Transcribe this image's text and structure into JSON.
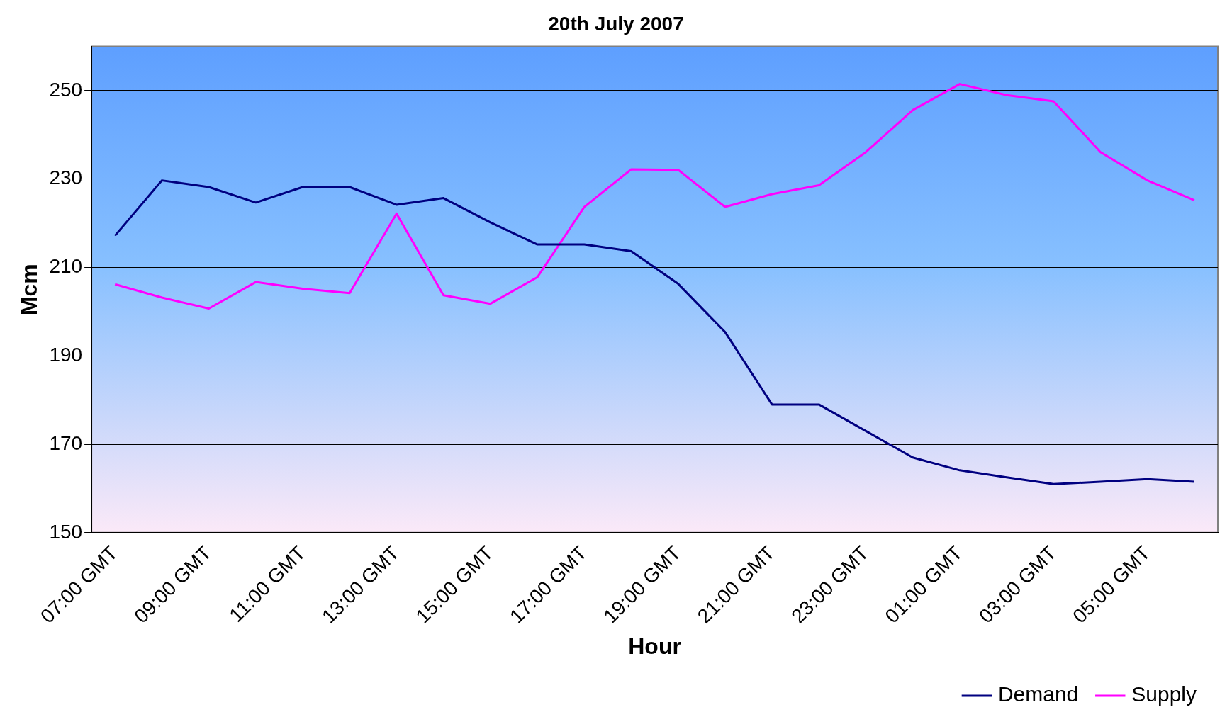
{
  "chart_data": {
    "type": "line",
    "title": "20th July 2007",
    "xlabel": "Hour",
    "ylabel": "Mcm",
    "categories": [
      "07:00 GMT",
      null,
      "09:00 GMT",
      null,
      "11:00 GMT",
      null,
      "13:00 GMT",
      null,
      "15:00 GMT",
      null,
      "17:00 GMT",
      null,
      "19:00 GMT",
      null,
      "21:00 GMT",
      null,
      "23:00 GMT",
      null,
      "01:00 GMT",
      null,
      "03:00 GMT",
      null,
      "05:00 GMT",
      null
    ],
    "series": [
      {
        "name": "Demand",
        "color": "#000080",
        "values": [
          217.2,
          229.7,
          228.2,
          224.7,
          228.2,
          228.2,
          224.2,
          225.7,
          220.2,
          215.2,
          215.2,
          213.7,
          206.3,
          195.4,
          179.0,
          179.0,
          173.0,
          167.0,
          164.1,
          162.5,
          161.0,
          161.5,
          162.1,
          161.5
        ]
      },
      {
        "name": "Supply",
        "color": "#ff00ff",
        "values": [
          206.2,
          203.2,
          200.7,
          206.7,
          205.2,
          204.2,
          222.2,
          203.7,
          201.8,
          207.8,
          223.7,
          232.2,
          232.1,
          223.7,
          226.6,
          228.6,
          236.1,
          245.6,
          251.5,
          249.0,
          247.6,
          236.1,
          229.7,
          225.2
        ]
      }
    ],
    "ylim": [
      150,
      260
    ],
    "yticks": [
      150,
      170,
      190,
      210,
      230,
      250
    ],
    "grid": "y",
    "legend": "bottom right",
    "marker": "none",
    "line_style": "solid"
  }
}
